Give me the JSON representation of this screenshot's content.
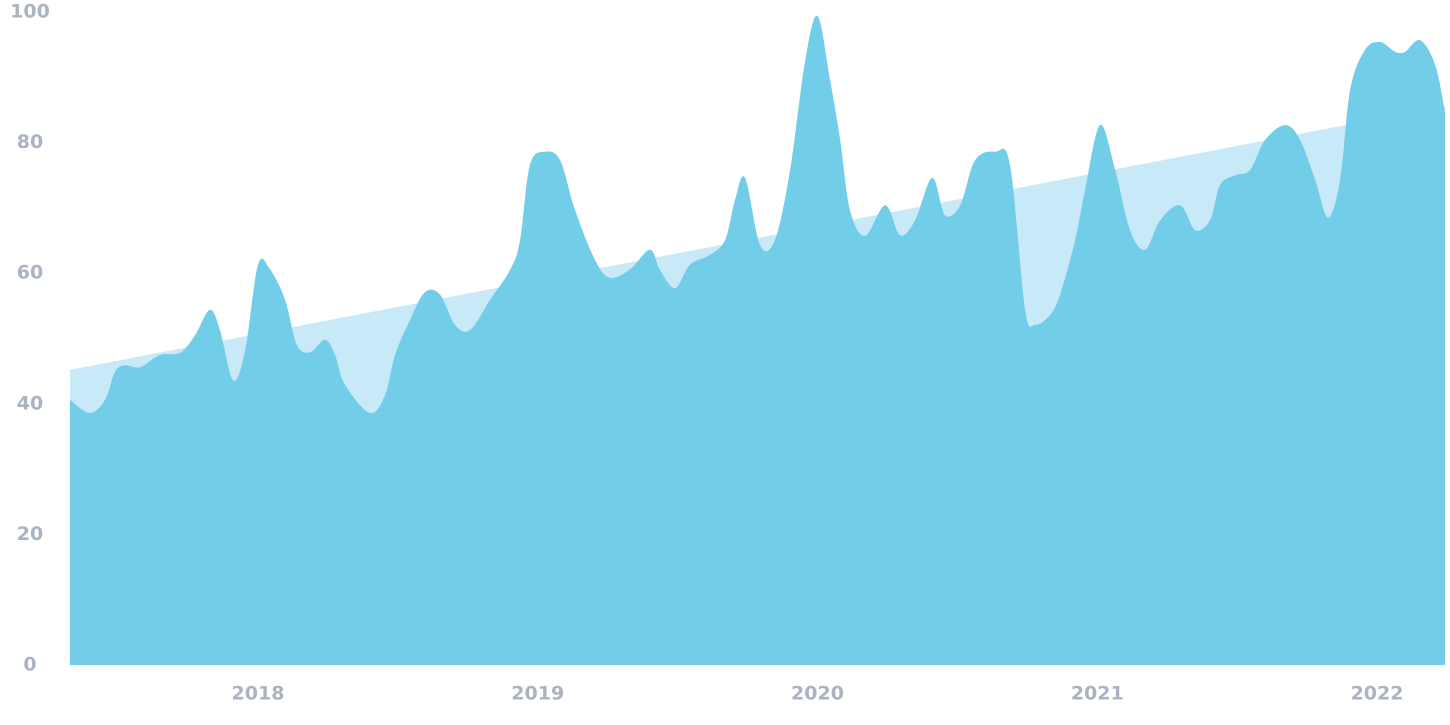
{
  "chart_data": {
    "type": "area",
    "xlim": [
      2017.328,
      2022.243
    ],
    "xticks": [
      2018,
      2019,
      2020,
      2021,
      2022
    ],
    "ylim": [
      0,
      100
    ],
    "yticks": [
      0,
      20,
      40,
      60,
      80,
      100
    ],
    "series": [
      {
        "color": "#c8e9f7",
        "x": [
          2017.328,
          2022.243
        ],
        "values": [
          45.2,
          85.6
        ]
      },
      {
        "color": "#72cde9",
        "x": [
          2017.328,
          2017.399,
          2017.453,
          2017.489,
          2017.524,
          2017.578,
          2017.65,
          2017.721,
          2017.775,
          2017.828,
          2017.864,
          2017.911,
          2017.954,
          2018,
          2018.043,
          2018.097,
          2018.139,
          2018.186,
          2018.24,
          2018.275,
          2018.311,
          2018.4,
          2018.454,
          2018.49,
          2018.543,
          2018.597,
          2018.651,
          2018.704,
          2018.758,
          2018.829,
          2018.901,
          2018.937,
          2018.972,
          2019.026,
          2019.08,
          2019.133,
          2019.205,
          2019.258,
          2019.33,
          2019.401,
          2019.437,
          2019.491,
          2019.544,
          2019.616,
          2019.67,
          2019.705,
          2019.741,
          2019.795,
          2019.848,
          2019.902,
          2019.956,
          2020,
          2020.045,
          2020.081,
          2020.116,
          2020.17,
          2020.242,
          2020.295,
          2020.349,
          2020.41,
          2020.456,
          2020.51,
          2020.563,
          2020.635,
          2020.688,
          2020.742,
          2020.778,
          2020.831,
          2020.867,
          2020.921,
          2020.956,
          2021.01,
          2021.064,
          2021.117,
          2021.171,
          2021.225,
          2021.296,
          2021.35,
          2021.403,
          2021.439,
          2021.493,
          2021.546,
          2021.6,
          2021.672,
          2021.725,
          2021.779,
          2021.825,
          2021.868,
          2021.904,
          2021.957,
          2022.011,
          2022.065,
          2022.1,
          2022.154,
          2022.208,
          2022.243
        ],
        "values": [
          40.6,
          38.6,
          40.6,
          44.9,
          45.9,
          45.6,
          47.5,
          47.8,
          50.5,
          54.4,
          51.3,
          43.6,
          48.2,
          61.3,
          60.6,
          55.9,
          49.0,
          47.9,
          49.8,
          47.5,
          42.9,
          38.6,
          41.3,
          47.5,
          52.8,
          57.1,
          56.7,
          52.1,
          51.3,
          55.9,
          60.5,
          65.1,
          76.6,
          78.6,
          77.3,
          69.7,
          62.0,
          59.3,
          60.6,
          63.6,
          60.5,
          57.7,
          61.3,
          62.8,
          65.1,
          71.2,
          74.6,
          64.3,
          65.1,
          75.8,
          92.6,
          99.4,
          89.6,
          80.4,
          69.7,
          65.7,
          70.4,
          65.8,
          68.1,
          74.6,
          68.9,
          70.4,
          77.3,
          78.6,
          76.6,
          54.4,
          52.1,
          53.6,
          56.7,
          65.1,
          72.7,
          82.7,
          75.8,
          66.6,
          63.6,
          68.1,
          70.4,
          66.6,
          68.1,
          73.5,
          75.0,
          75.8,
          80.4,
          82.7,
          80.4,
          74.3,
          68.5,
          74.3,
          88.1,
          94.2,
          95.4,
          93.9,
          93.9,
          95.7,
          91.9,
          84.7
        ]
      }
    ]
  }
}
